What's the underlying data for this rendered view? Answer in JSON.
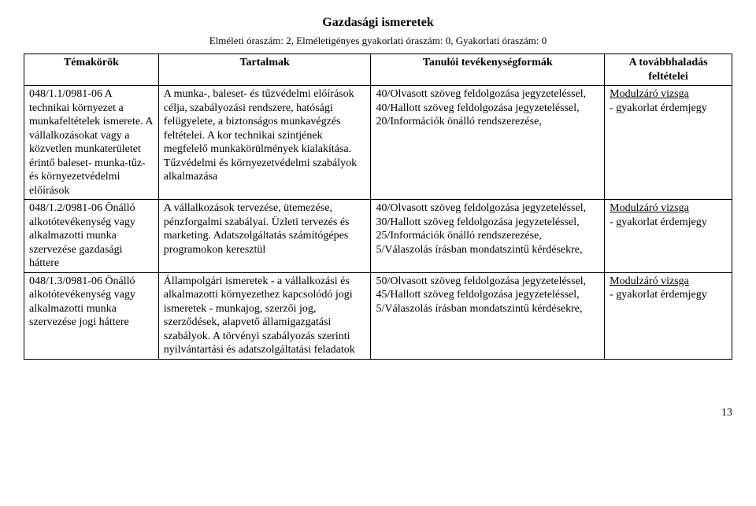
{
  "title": "Gazdasági ismeretek",
  "subtitle": "Elméleti óraszám: 2, Elméletigényes gyakorlati óraszám: 0, Gyakorlati óraszám: 0",
  "headers": {
    "c0": "Témakörök",
    "c1": "Tartalmak",
    "c2": "Tanulói tevékenységformák",
    "c3": "A továbbhaladás feltételei"
  },
  "rows": [
    {
      "c0": "048/1.1/0981-06 A technikai környezet a munkafeltételek ismerete. A vállalkozásokat vagy a közvetlen munkaterületet érintő baleset- munka-tűz- és környezetvédelmi előírások",
      "c1": "A munka-, baleset- és tűzvédelmi előírások célja, szabályozási rendszere, hatósági felügyelete, a biztonságos munkavégzés feltételei. A kor technikai szintjének megfelelő munkakörülmények kialakítása. Tűzvédelmi és környezetvédelmi szabályok alkalmazása",
      "c2": "40/Olvasott szöveg feldolgozása jegyzeteléssel,\n40/Hallott szöveg feldolgozása jegyzeteléssel,\n20/Információk önálló rendszerezése,",
      "c3a": "Modulzáró vizsga",
      "c3b": "- gyakorlat érdemjegy"
    },
    {
      "c0": "048/1.2/0981-06 Önálló alkotótevékenység vagy alkalmazotti munka szervezése gazdasági háttere",
      "c1": "A vállalkozások tervezése, ütemezése, pénzforgalmi szabályai. Üzleti tervezés és marketing. Adatszolgáltatás számítógépes programokon keresztül",
      "c2": "40/Olvasott szöveg feldolgozása jegyzeteléssel,\n30/Hallott szöveg feldolgozása jegyzeteléssel,\n25/Információk önálló rendszerezése,\n5/Válaszolás írásban mondatszintű kérdésekre,",
      "c3a": "Modulzáró vizsga",
      "c3b": "- gyakorlat érdemjegy"
    },
    {
      "c0": "048/1.3/0981-06 Önálló alkotótevékenység vagy alkalmazotti munka szervezése jogi háttere",
      "c1": "Állampolgári ismeretek - a vállalkozási és alkalmazotti környezethez kapcsolódó jogi ismeretek - munkajog, szerzői jog, szerződések, alapvető államigazgatási szabályok. A törvényi szabályozás szerinti nyilvántartási és adatszolgáltatási feladatok",
      "c2": "50/Olvasott szöveg feldolgozása jegyzeteléssel,\n45/Hallott szöveg feldolgozása jegyzeteléssel,\n5/Válaszolás írásban mondatszintű kérdésekre,",
      "c3a": "Modulzáró vizsga",
      "c3b": " - gyakorlat érdemjegy"
    }
  ],
  "page_number": "13"
}
